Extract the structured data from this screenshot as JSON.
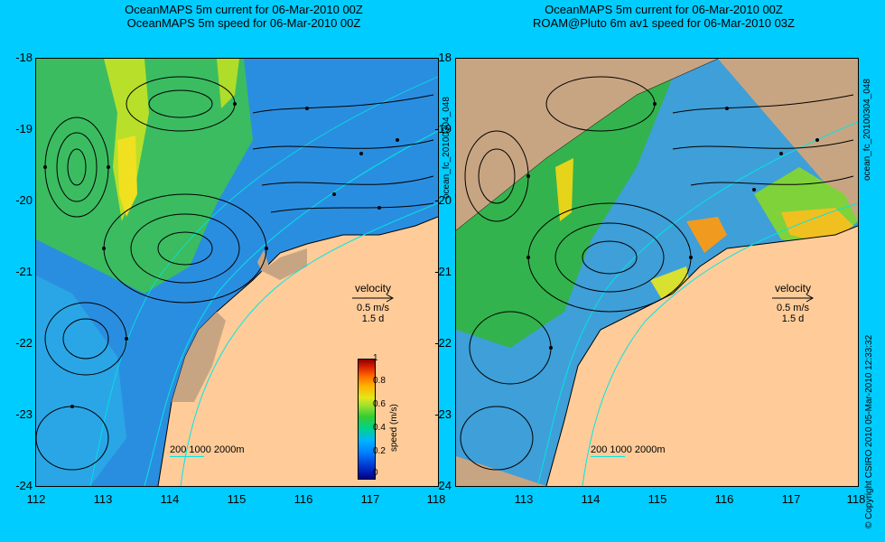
{
  "titles": {
    "left_line1": "OceanMAPS 5m current for 06-Mar-2010 00Z",
    "left_line2": "OceanMAPS 5m speed for 06-Mar-2010 00Z",
    "right_line1": "OceanMAPS 5m current for 06-Mar-2010 00Z",
    "right_line2": "ROAM@Pluto 6m av1 speed for 06-Mar-2010 03Z"
  },
  "axes": {
    "y_ticks": [
      "-18",
      "-19",
      "-20",
      "-21",
      "-22",
      "-23",
      "-24"
    ],
    "x_ticks": [
      "112",
      "113",
      "114",
      "115",
      "116",
      "117",
      "118"
    ],
    "lon_range": [
      112,
      118
    ],
    "lat_range": [
      -24,
      -18
    ]
  },
  "velocity_legend": {
    "title": "velocity",
    "speed": "0.5 m/s",
    "duration": "1.5 d"
  },
  "depth_legend": "200  1000  2000m",
  "colorbar": {
    "label": "speed (m/s)",
    "ticks": [
      "1",
      "0.8",
      "0.6",
      "0.4",
      "0.2",
      "0"
    ],
    "range": [
      0,
      1
    ]
  },
  "side_text": {
    "left_id": "ocean_fc_20100304_048",
    "right_id": "ocean_fc_20100304_048",
    "copyright": "© Copyright CSIRO 2010   05-Mar-2010 12:33:32"
  },
  "colors": {
    "background": "#00ccff",
    "land": "#ffcc99",
    "land_shadow": "#c8a582",
    "isobath": "#00e5e5"
  }
}
